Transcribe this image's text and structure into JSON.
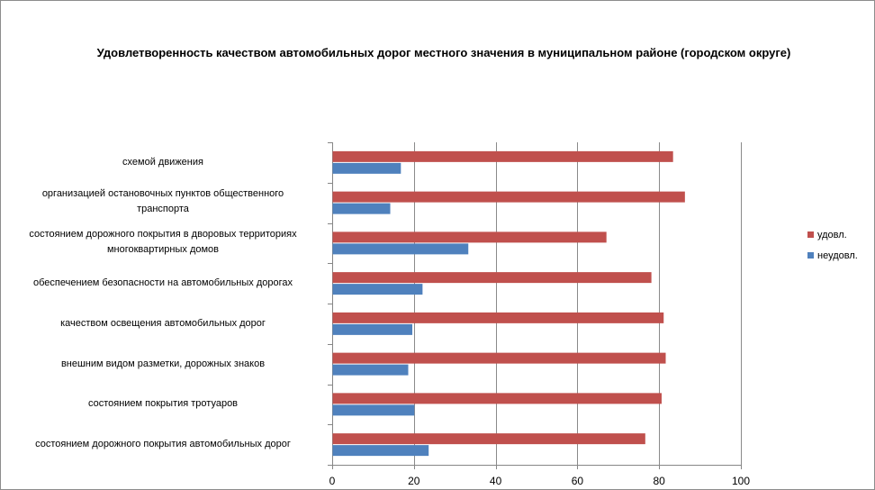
{
  "chart_data": {
    "type": "bar",
    "orientation": "horizontal",
    "title": "Удовлетворенность качеством автомобильных дорог местного значения в муниципальном районе (городском округе)",
    "categories": [
      "схемой движения",
      "организацией остановочных пунктов общественного транспорта",
      "состоянием дорожного покрытия в дворовых территориях многоквартирных домов",
      "обеспечением  безопасности на автомобильных дорогах",
      "качеством освещения  автомобильных дорог",
      "внешним  видом разметки, дорожных знаков",
      "состоянием покрытия тротуаров",
      "состоянием дорожного покрытия автомобильных дорог"
    ],
    "category_lines": [
      [
        "схемой движения"
      ],
      [
        "организацией остановочных пунктов общественного",
        "транспорта"
      ],
      [
        "состоянием дорожного покрытия в дворовых территориях",
        "многоквартирных домов"
      ],
      [
        "обеспечением  безопасности на автомобильных дорогах"
      ],
      [
        "качеством освещения  автомобильных дорог"
      ],
      [
        "внешним  видом разметки, дорожных знаков"
      ],
      [
        "состоянием покрытия тротуаров"
      ],
      [
        "состоянием дорожного покрытия автомобильных дорог"
      ]
    ],
    "series": [
      {
        "name": "удовл.",
        "color": "#c0504d",
        "values": [
          83.3,
          86.2,
          67.0,
          78.0,
          81.0,
          81.5,
          80.5,
          76.5
        ]
      },
      {
        "name": "неудовл.",
        "color": "#4f81bd",
        "values": [
          16.7,
          14.1,
          33.2,
          22.0,
          19.5,
          18.5,
          20.0,
          23.5
        ]
      }
    ],
    "xlim": [
      0,
      100
    ],
    "xticks": [
      0,
      20,
      40,
      60,
      80,
      100
    ],
    "xtick_labels": [
      "0",
      "20",
      "40",
      "60",
      "80",
      "100"
    ],
    "grid": true,
    "legend": "right",
    "xlabel": "",
    "ylabel": ""
  }
}
